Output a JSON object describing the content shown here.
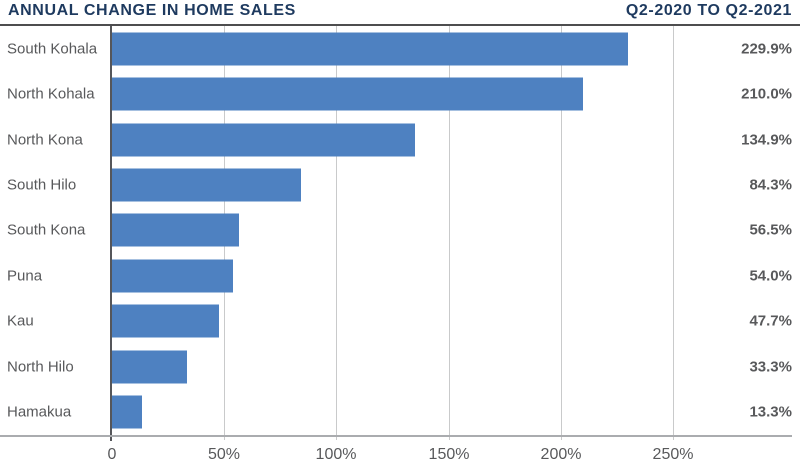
{
  "header": {
    "title": "ANNUAL CHANGE IN HOME SALES",
    "period": "Q2-2020 TO Q2-2021"
  },
  "colors": {
    "title_navy": "#1e3a5f",
    "bar_blue": "#4e81c1",
    "label_gray": "#58595b",
    "gridline_gray": "#c9cacb",
    "axis_gray": "#aaacaf"
  },
  "chart_data": {
    "type": "bar",
    "orientation": "horizontal",
    "title": "ANNUAL CHANGE IN HOME SALES",
    "subtitle": "Q2-2020 TO Q2-2021",
    "categories": [
      "South Kohala",
      "North Kohala",
      "North Kona",
      "South Hilo",
      "South Kona",
      "Puna",
      "Kau",
      "North Hilo",
      "Hamakua"
    ],
    "values": [
      229.9,
      210.0,
      134.9,
      84.3,
      56.5,
      54.0,
      47.7,
      33.3,
      13.3
    ],
    "value_labels": [
      "229.9%",
      "210.0%",
      "134.9%",
      "84.3%",
      "56.5%",
      "54.0%",
      "47.7%",
      "33.3%",
      "13.3%"
    ],
    "xlabel": "",
    "ylabel": "",
    "xlim": [
      0,
      250
    ],
    "x_ticks": [
      "0",
      "50%",
      "100%",
      "150%",
      "200%",
      "250%"
    ],
    "x_tick_values": [
      0,
      50,
      100,
      150,
      200,
      250
    ],
    "grid": true,
    "legend": false,
    "bar_color": "#4e81c1"
  }
}
